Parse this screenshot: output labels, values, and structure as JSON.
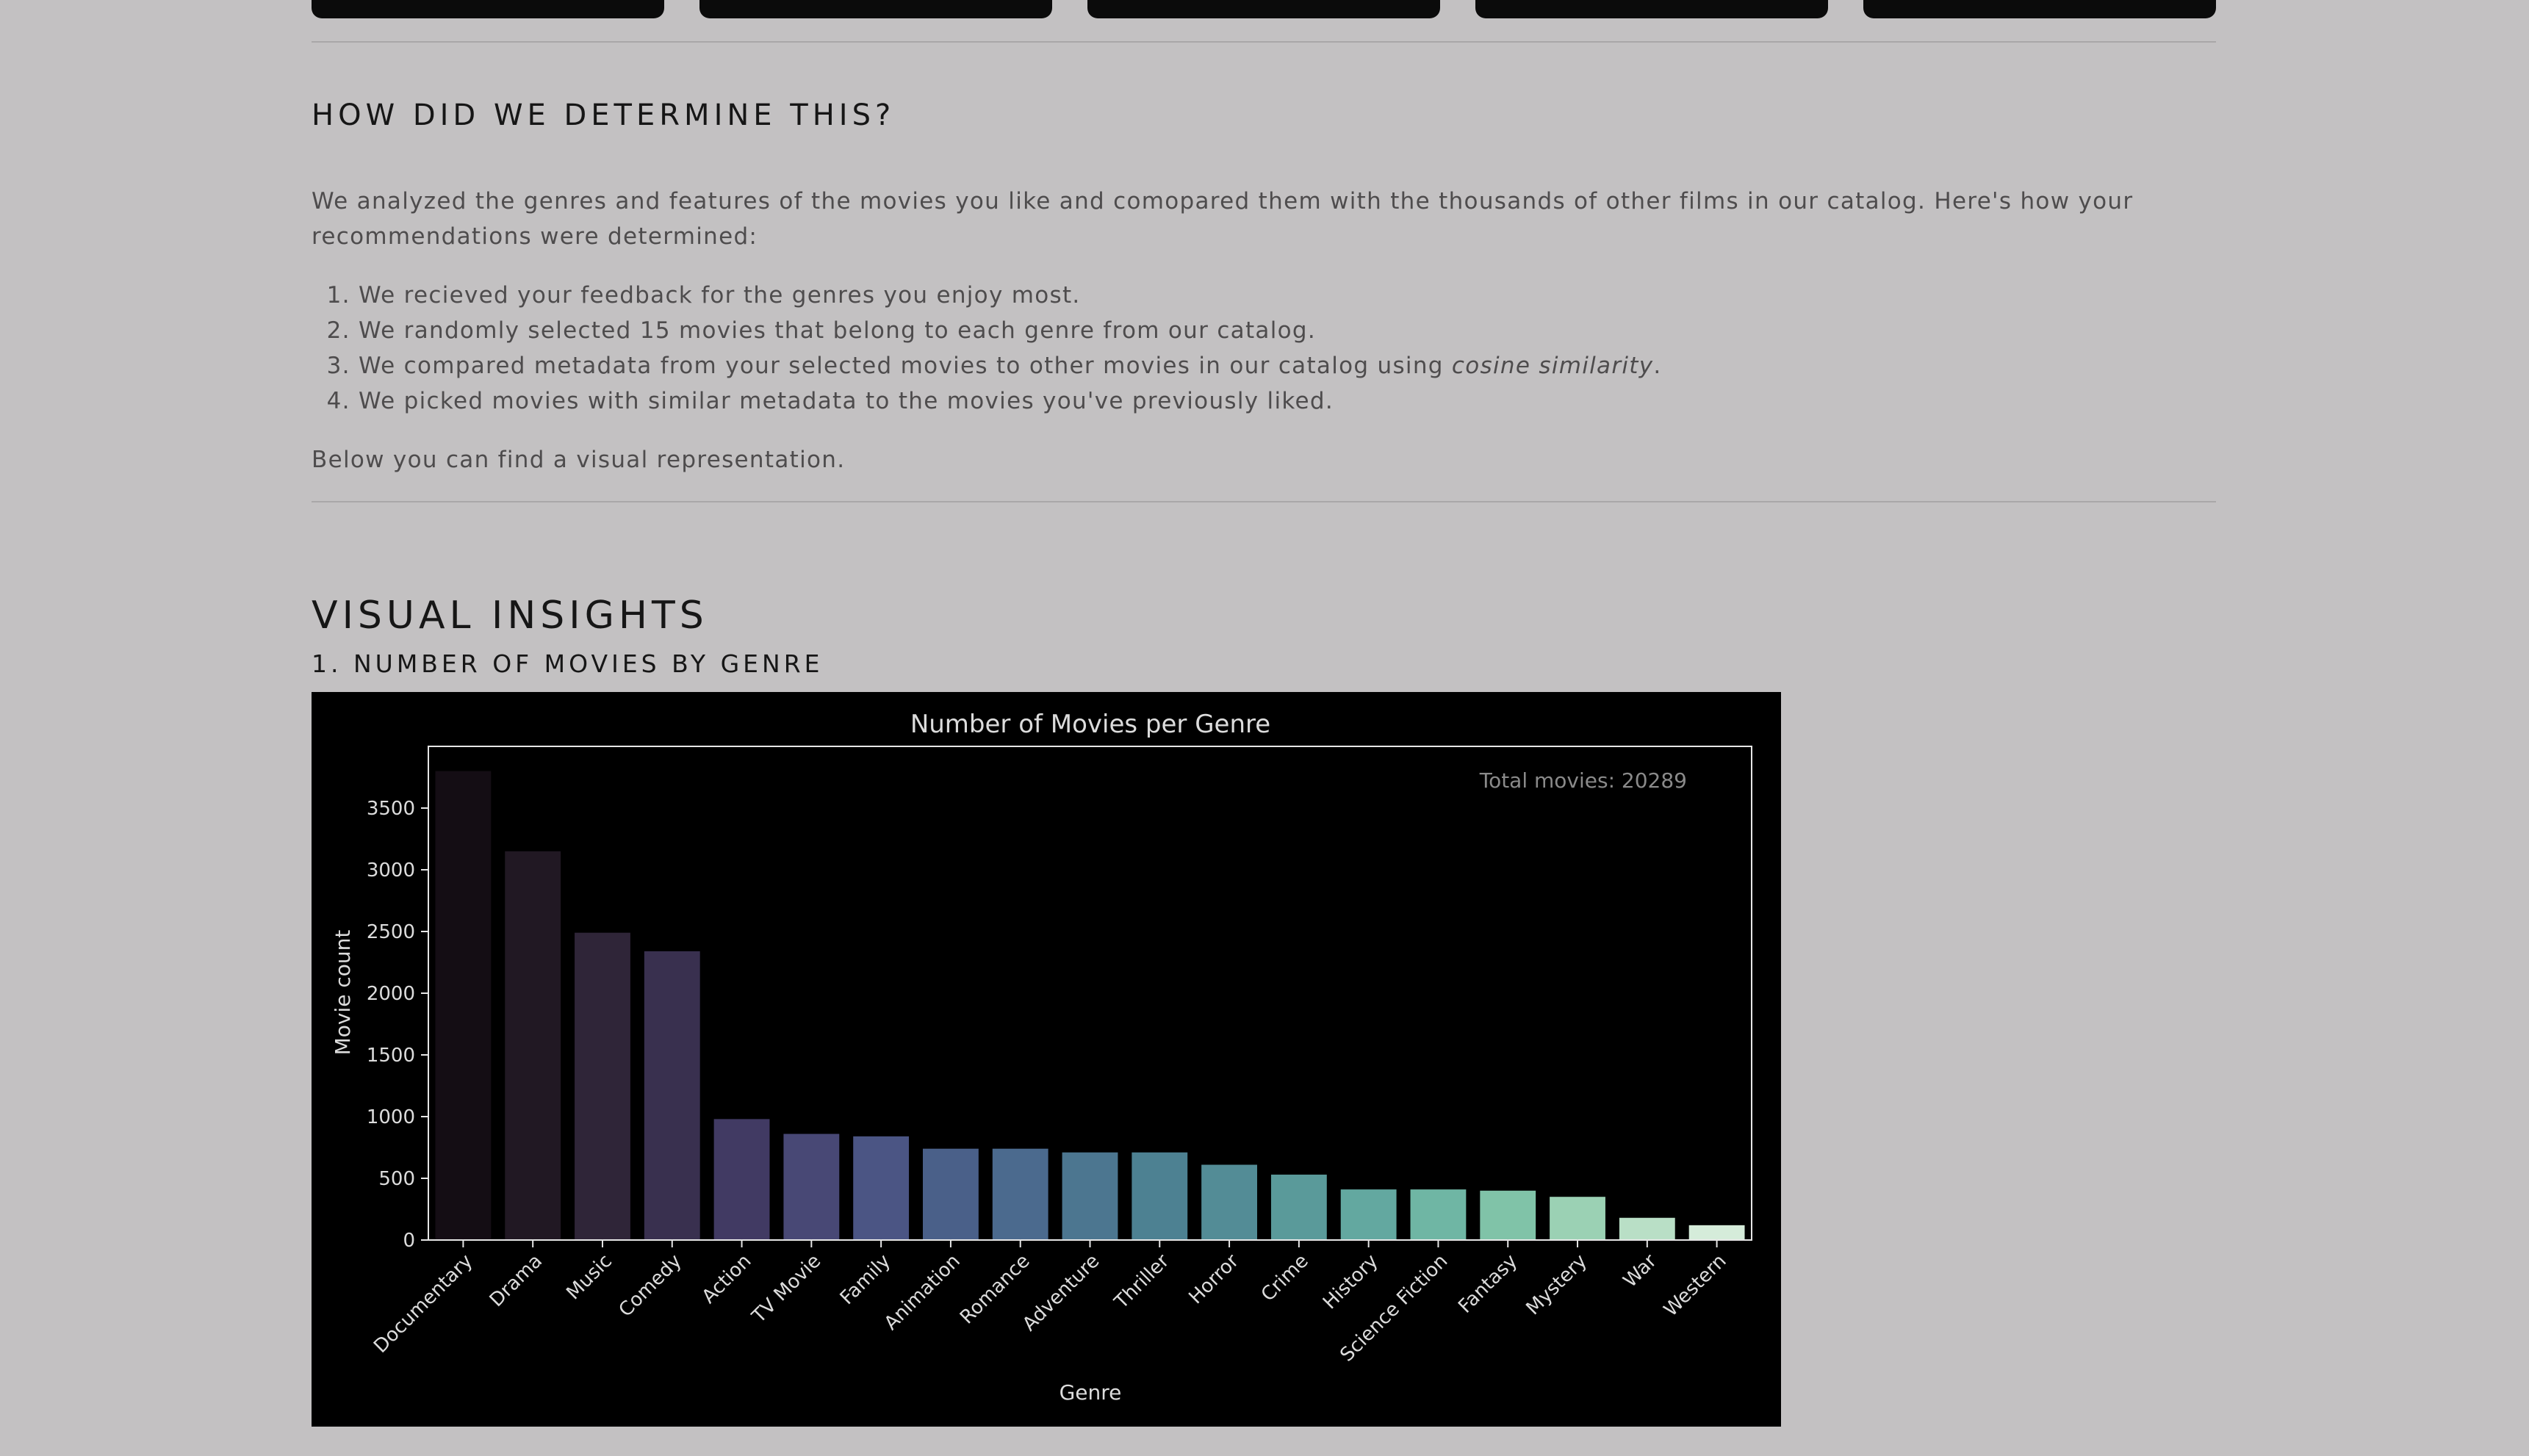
{
  "how_section": {
    "title": "HOW DID WE DETERMINE THIS?",
    "intro": "We analyzed the genres and features of the movies you like and comopared them with the thousands of other films in our catalog. Here's how your recommendations were determined:",
    "steps": [
      "We recieved your feedback for the genres you enjoy most.",
      "We randomly selected 15 movies that belong to each genre from our catalog.",
      "We picked movies with similar metadata to the movies you've previously liked."
    ],
    "step3": {
      "before": "We compared metadata from your selected movies to other movies in our catalog using ",
      "emphasis": "cosine similarity",
      "after": "."
    },
    "below_text": "Below you can find a visual representation."
  },
  "visual_insights": {
    "title": "VISUAL INSIGHTS",
    "subtitle": "1. NUMBER OF MOVIES BY GENRE"
  },
  "chart_data": {
    "type": "bar",
    "title": "Number of Movies per Genre",
    "xlabel": "Genre",
    "ylabel": "Movie count",
    "annotation": "Total movies: 20289",
    "categories": [
      "Documentary",
      "Drama",
      "Music",
      "Comedy",
      "Action",
      "TV Movie",
      "Family",
      "Animation",
      "Romance",
      "Adventure",
      "Thriller",
      "Horror",
      "Crime",
      "History",
      "Science Fiction",
      "Fantasy",
      "Mystery",
      "War",
      "Western"
    ],
    "values": [
      3800,
      3150,
      2490,
      2340,
      980,
      860,
      840,
      740,
      740,
      710,
      710,
      610,
      530,
      410,
      410,
      400,
      350,
      180,
      120
    ],
    "colors": [
      "#140d14",
      "#211823",
      "#2f2538",
      "#39304f",
      "#413a63",
      "#484875",
      "#4b5584",
      "#4a6089",
      "#4b6a8e",
      "#4c7690",
      "#4d8192",
      "#538c96",
      "#5a9a9a",
      "#63a8a0",
      "#6fb6a4",
      "#80c3a8",
      "#9bd1b4",
      "#b9dfc6",
      "#d5ecda"
    ],
    "yticks": [
      0,
      500,
      1000,
      1500,
      2000,
      2500,
      3000,
      3500
    ],
    "ylim": [
      0,
      4000
    ],
    "grid": false,
    "background": "#000000"
  }
}
